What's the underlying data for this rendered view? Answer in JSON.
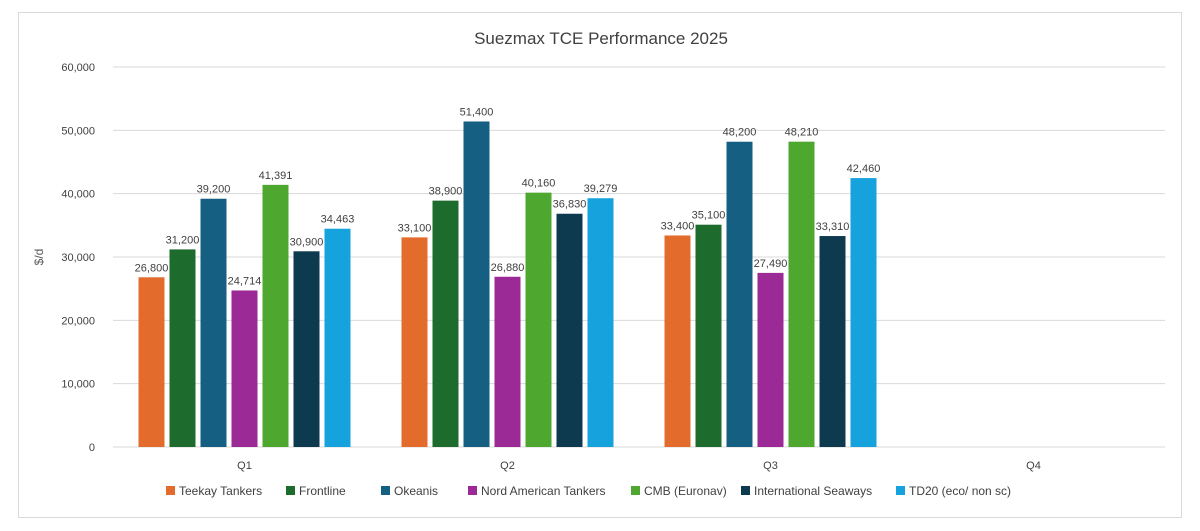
{
  "chart_data": {
    "type": "bar",
    "title": "Suezmax TCE Performance 2025",
    "ylabel": "$/d",
    "xlabel": "",
    "ylim": [
      0,
      60000
    ],
    "yticks": [
      0,
      10000,
      20000,
      30000,
      40000,
      50000,
      60000
    ],
    "ytick_labels": [
      "0",
      "10,000",
      "20,000",
      "30,000",
      "40,000",
      "50,000",
      "60,000"
    ],
    "grid": true,
    "legend_position": "bottom",
    "categories": [
      "Q1",
      "Q2",
      "Q3",
      "Q4"
    ],
    "series": [
      {
        "name": "Teekay Tankers",
        "color": "#e36c2d",
        "values": [
          26800,
          33100,
          33400,
          null
        ],
        "labels": [
          "26,800",
          "33,100",
          "33,400",
          ""
        ]
      },
      {
        "name": "Frontline",
        "color": "#1e6b2e",
        "values": [
          31200,
          38900,
          35100,
          null
        ],
        "labels": [
          "31,200",
          "38,900",
          "35,100",
          ""
        ]
      },
      {
        "name": "Okeanis",
        "color": "#155f83",
        "values": [
          39200,
          51400,
          48200,
          null
        ],
        "labels": [
          "39,200",
          "51,400",
          "48,200",
          ""
        ]
      },
      {
        "name": "Nord American Tankers",
        "color": "#9b2a96",
        "values": [
          24714,
          26880,
          27490,
          null
        ],
        "labels": [
          "24,714",
          "26,880",
          "27,490",
          ""
        ]
      },
      {
        "name": "CMB (Euronav)",
        "color": "#4ea72e",
        "values": [
          41391,
          40160,
          48210,
          null
        ],
        "labels": [
          "41,391",
          "40,160",
          "48,210",
          ""
        ]
      },
      {
        "name": "International Seaways",
        "color": "#0d3a4e",
        "values": [
          30900,
          36830,
          33310,
          null
        ],
        "labels": [
          "30,900",
          "36,830",
          "33,310",
          ""
        ]
      },
      {
        "name": "TD20 (eco/ non sc)",
        "color": "#16a2dc",
        "values": [
          34463,
          39279,
          42460,
          null
        ],
        "labels": [
          "34,463",
          "39,279",
          "42,460",
          ""
        ]
      }
    ]
  }
}
